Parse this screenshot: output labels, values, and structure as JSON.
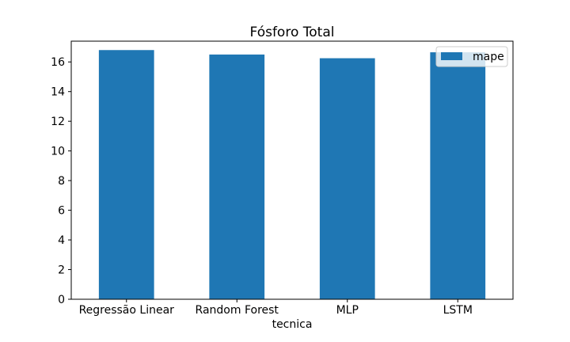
{
  "chart_data": {
    "type": "bar",
    "title": "Fósforo Total",
    "xlabel": "tecnica",
    "ylabel": "",
    "categories": [
      "Regressão Linear",
      "Random Forest",
      "MLP",
      "LSTM"
    ],
    "series": [
      {
        "name": "mape",
        "values": [
          16.8,
          16.5,
          16.25,
          16.65
        ],
        "color": "#1f77b4"
      }
    ],
    "ylim": [
      0,
      17.4
    ],
    "yticks": [
      0,
      2,
      4,
      6,
      8,
      10,
      12,
      14,
      16
    ],
    "legend": {
      "position": "top-right"
    },
    "grid": false
  }
}
